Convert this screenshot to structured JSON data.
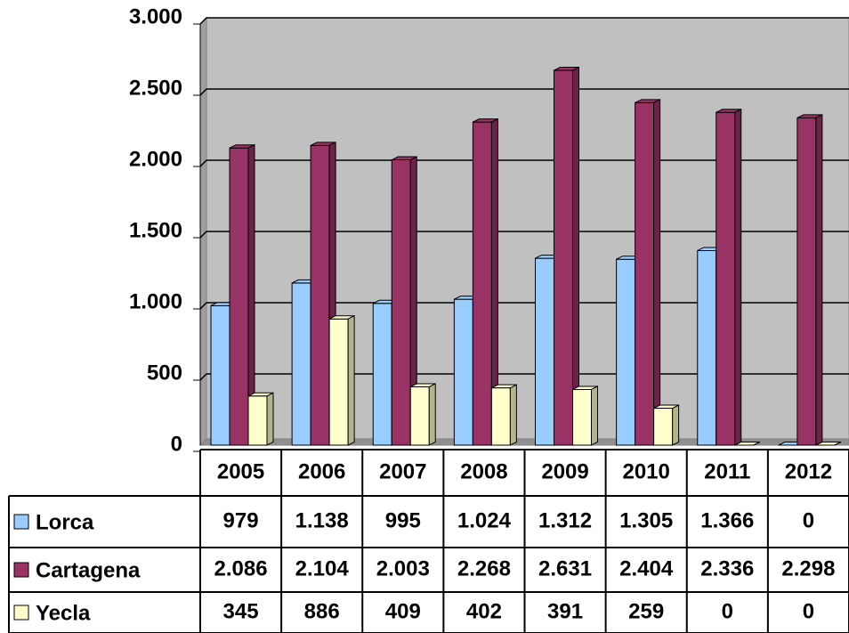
{
  "chart_data": {
    "type": "bar3d",
    "categories": [
      "2005",
      "2006",
      "2007",
      "2008",
      "2009",
      "2010",
      "2011",
      "2012"
    ],
    "series": [
      {
        "name": "Lorca",
        "color": "#99ccff",
        "values": [
          979,
          1138,
          995,
          1024,
          1312,
          1305,
          1366,
          0
        ],
        "value_labels": [
          "979",
          "1.138",
          "995",
          "1.024",
          "1.312",
          "1.305",
          "1.366",
          "0"
        ]
      },
      {
        "name": "Cartagena",
        "color": "#993366",
        "values": [
          2086,
          2104,
          2003,
          2268,
          2631,
          2404,
          2336,
          2298
        ],
        "value_labels": [
          "2.086",
          "2.104",
          "2.003",
          "2.268",
          "2.631",
          "2.404",
          "2.336",
          "2.298"
        ]
      },
      {
        "name": "Yecla",
        "color": "#ffffcc",
        "values": [
          345,
          886,
          409,
          402,
          391,
          259,
          0,
          0
        ],
        "value_labels": [
          "345",
          "886",
          "409",
          "402",
          "391",
          "259",
          "0",
          "0"
        ]
      }
    ],
    "ylim": [
      0,
      3000
    ],
    "yticks": [
      0,
      500,
      {
        "value": 1000,
        "label": "1.000"
      },
      {
        "value": 1500,
        "label": "1.500"
      },
      {
        "value": 2000,
        "label": "2.000"
      },
      {
        "value": 2500,
        "label": "2.500"
      },
      {
        "value": 3000,
        "label": "3.000"
      }
    ],
    "grid": true,
    "plot_background": "#c0c0c0"
  }
}
